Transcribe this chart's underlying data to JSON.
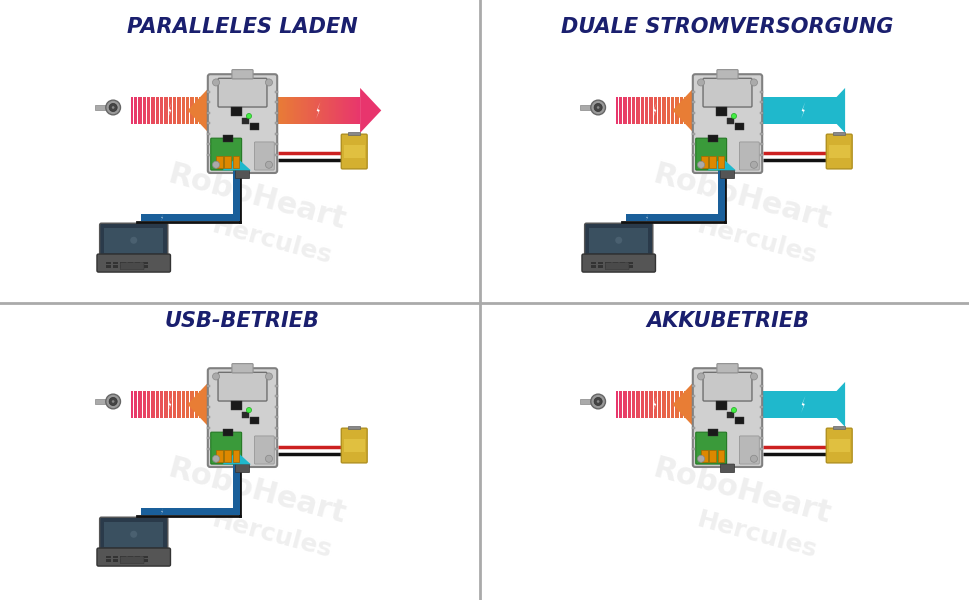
{
  "titles": [
    "PARALLELES LADEN",
    "DUALE STROMVERSORGUNG",
    "USB-BETRIEB",
    "AKKUBETRIEB"
  ],
  "title_color": "#1a1f6e",
  "title_fontsize": 15,
  "background_color": "#ffffff",
  "divider_color": "#aaaaaa",
  "arrow_pink": "#e8356d",
  "arrow_orange": "#e87d35",
  "arrow_teal": "#1fb8cc",
  "arrow_dark_blue": "#1a5f9a",
  "arrow_mid_blue": "#1a7aaa",
  "panel_types": [
    "parallel",
    "dual",
    "usb",
    "akku"
  ],
  "watermark_color": "#e0e0e0",
  "board_bg": "#d8d8d8",
  "board_light": "#e8e8e8",
  "board_dark": "#b0b0b0",
  "board_green": "#3a9a3a",
  "board_green2": "#2d7a2d",
  "board_esp": "#c0c0c0",
  "knob_gray": "#888888",
  "laptop_dark": "#333333",
  "laptop_mid": "#555555",
  "laptop_screen": "#445566",
  "battery_gold": "#d4b030",
  "battery_edge": "#b09020",
  "wire_red": "#cc2020",
  "wire_black": "#111111"
}
